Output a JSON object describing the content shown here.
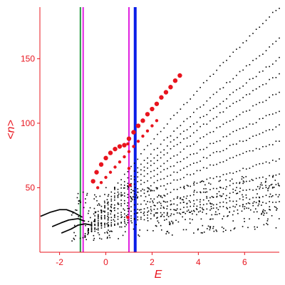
{
  "chart_data": {
    "type": "scatter",
    "title": "",
    "xlabel": "E",
    "ylabel": "<n>",
    "xlim": [
      -2.85,
      7.5
    ],
    "ylim": [
      0,
      190
    ],
    "xticks": [
      -2,
      0,
      2,
      4,
      6
    ],
    "yticks": [
      50,
      100,
      150
    ],
    "grid": false,
    "legend": "none",
    "colors": {
      "axis": "#e8141e",
      "black_points": "#000000",
      "red_points": "#e8141e",
      "green_line": "#1f9a3a",
      "magenta_line": "#e020e0",
      "blue_line": "#0a1ee8"
    },
    "vertical_lines": [
      {
        "x": -1.1,
        "color": "green"
      },
      {
        "x": -0.98,
        "color": "magenta"
      },
      {
        "x": 1.0,
        "color": "magenta"
      },
      {
        "x": 1.27,
        "color": "blue"
      }
    ],
    "series": [
      {
        "color": "black",
        "tails": [
          {
            "x": [
              -2.8,
              -2.4,
              -2.0,
              -1.7,
              -1.4,
              -1.0
            ],
            "y": [
              28,
              31,
              33,
              33,
              31,
              27
            ]
          },
          {
            "x": [
              -2.3,
              -1.9,
              -1.6,
              -1.2,
              -0.9
            ],
            "y": [
              20,
              23,
              25,
              26,
              24
            ]
          },
          {
            "x": [
              -1.9,
              -1.5,
              -1.2,
              -0.9,
              -0.6
            ],
            "y": [
              15,
              18,
              21,
              22,
              21
            ]
          }
        ],
        "branch_start": {
          "x": -0.9,
          "y": 12
        },
        "branch_ends": [
          {
            "x": 7.5,
            "y": 190
          },
          {
            "x": 7.5,
            "y": 165
          },
          {
            "x": 7.5,
            "y": 150
          },
          {
            "x": 7.5,
            "y": 138
          },
          {
            "x": 7.5,
            "y": 124
          },
          {
            "x": 7.5,
            "y": 110
          },
          {
            "x": 7.5,
            "y": 98
          },
          {
            "x": 7.5,
            "y": 86
          },
          {
            "x": 7.5,
            "y": 72
          },
          {
            "x": 7.5,
            "y": 60
          },
          {
            "x": 7.5,
            "y": 52
          },
          {
            "x": 7.5,
            "y": 45
          },
          {
            "x": 7.5,
            "y": 40
          }
        ],
        "cloud": {
          "xlim": [
            -1.5,
            7.5
          ],
          "ylim_base": [
            8,
            48
          ],
          "count": 420
        }
      },
      {
        "color": "red",
        "x": [
          -0.55,
          -0.4,
          -0.2,
          0.0,
          0.2,
          0.4,
          0.6,
          0.8,
          1.0,
          1.2,
          1.4,
          1.6,
          1.8,
          2.0,
          2.2,
          2.4,
          2.6,
          2.8,
          3.0,
          3.2
        ],
        "y": [
          55,
          62,
          68,
          73,
          77,
          80,
          82,
          83,
          88,
          93,
          98,
          102,
          107,
          111,
          115,
          120,
          124,
          128,
          133,
          137
        ]
      },
      {
        "color": "red",
        "x": [
          -0.35,
          -0.2,
          0.0,
          0.2,
          0.4,
          0.6,
          0.8,
          1.0,
          1.2,
          1.4,
          1.6,
          1.8,
          2.0,
          2.2
        ],
        "y": [
          50,
          54,
          58,
          62,
          66,
          70,
          74,
          78,
          82,
          86,
          90,
          94,
          98,
          102
        ]
      },
      {
        "color": "red",
        "x": [
          0.95,
          1.0,
          1.05,
          0.95
        ],
        "y": [
          84,
          65,
          52,
          27
        ]
      }
    ]
  }
}
